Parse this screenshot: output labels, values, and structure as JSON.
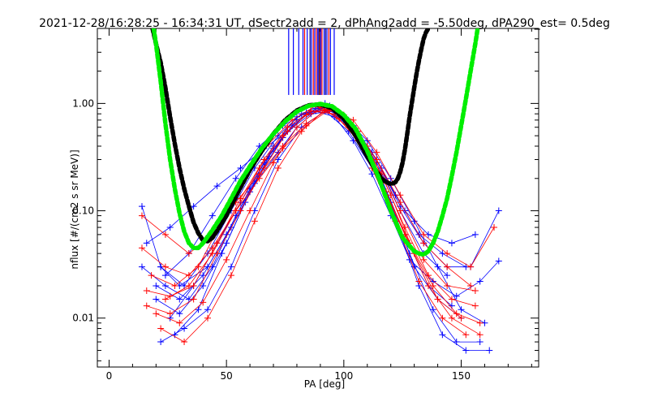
{
  "chart_data": {
    "type": "line",
    "title": "2021-12-28/16:28:25 - 16:34:31 UT, dSectr2add = 2, dPhAng2add = -5.50deg, dPA290_est=   0.5deg",
    "xlabel": "PA [deg]",
    "ylabel": "nflux [#/(cm2 s sr MeV)]",
    "xlim": [
      -5,
      183
    ],
    "ylim": [
      0.0035,
      5.0
    ],
    "yscale": "log",
    "xticks": [
      0,
      50,
      100,
      150
    ],
    "xtick_labels": [
      "0",
      "50",
      "100",
      "150"
    ],
    "yticks": [
      0.01,
      0.1,
      1.0
    ],
    "ytick_labels": [
      "0.01",
      "0.10",
      "1.00"
    ],
    "grid": false,
    "colors": {
      "blue": "#0000ff",
      "red": "#ff0000",
      "black": "#000000",
      "green": "#00ee00",
      "navy": "#00008b",
      "darkred": "#8b0000"
    },
    "vertical_markers": {
      "ymin": 1.2,
      "ymax": 5.0,
      "blue_x": [
        76.5,
        78.5,
        80.8,
        82.6,
        84.4,
        86.2,
        87.6,
        88.9,
        90.2,
        91.6,
        92.8,
        94.3,
        95.9
      ],
      "navy_x": [
        85.6,
        89.4,
        92.2
      ],
      "red_x": [
        83.3,
        87.0,
        88.3,
        90.7,
        93.6
      ],
      "darkred_x": [
        89.7
      ]
    },
    "fit_curves": [
      {
        "color": "black",
        "x": [
          18.5,
          20,
          22,
          24,
          26,
          28,
          30,
          32,
          34,
          36,
          38,
          40,
          42,
          44,
          46,
          50,
          55,
          60,
          65,
          70,
          75,
          80,
          85,
          90,
          95,
          100,
          105,
          110,
          113,
          116,
          118,
          120,
          121,
          122,
          123,
          124,
          125,
          126,
          127,
          128,
          130,
          131,
          132,
          133,
          134,
          135,
          136
        ],
        "y": [
          5.0,
          3.6,
          2.4,
          1.4,
          0.75,
          0.42,
          0.25,
          0.16,
          0.11,
          0.078,
          0.062,
          0.053,
          0.052,
          0.056,
          0.065,
          0.09,
          0.15,
          0.24,
          0.36,
          0.52,
          0.7,
          0.86,
          0.96,
          0.98,
          0.9,
          0.72,
          0.5,
          0.32,
          0.25,
          0.2,
          0.185,
          0.178,
          0.18,
          0.185,
          0.2,
          0.23,
          0.28,
          0.37,
          0.52,
          0.75,
          1.4,
          1.9,
          2.5,
          3.2,
          4.0,
          4.6,
          5.0
        ]
      },
      {
        "color": "green",
        "x": [
          19,
          20,
          22,
          24,
          26,
          28,
          30,
          32,
          34,
          36,
          38,
          40,
          44,
          48,
          52,
          56,
          60,
          65,
          70,
          75,
          80,
          85,
          90,
          95,
          100,
          105,
          110,
          115,
          120,
          125,
          130,
          132,
          134,
          136,
          138,
          140,
          142,
          144,
          146,
          148,
          150,
          152,
          154,
          156,
          157
        ],
        "y": [
          5.0,
          3.6,
          1.6,
          0.65,
          0.3,
          0.16,
          0.095,
          0.064,
          0.05,
          0.045,
          0.045,
          0.05,
          0.066,
          0.09,
          0.13,
          0.19,
          0.26,
          0.38,
          0.52,
          0.68,
          0.84,
          0.95,
          0.99,
          0.94,
          0.78,
          0.58,
          0.36,
          0.2,
          0.1,
          0.056,
          0.042,
          0.04,
          0.039,
          0.042,
          0.05,
          0.064,
          0.09,
          0.13,
          0.21,
          0.35,
          0.62,
          1.1,
          2.0,
          3.6,
          5.0
        ]
      }
    ],
    "series": [
      {
        "color": "blue",
        "x": [
          14,
          22,
          30,
          42,
          52,
          62,
          72,
          80,
          88,
          96,
          104,
          112,
          120,
          128,
          138,
          148,
          158,
          166
        ],
        "y": [
          0.11,
          0.03,
          0.02,
          0.03,
          0.07,
          0.18,
          0.35,
          0.6,
          0.85,
          0.75,
          0.45,
          0.22,
          0.09,
          0.035,
          0.022,
          0.016,
          0.022,
          0.034
        ]
      },
      {
        "color": "blue",
        "x": [
          20,
          30,
          40,
          50,
          60,
          70,
          80,
          90,
          100,
          110,
          120,
          130,
          140,
          150
        ],
        "y": [
          0.015,
          0.011,
          0.02,
          0.05,
          0.15,
          0.38,
          0.7,
          0.9,
          0.7,
          0.4,
          0.12,
          0.03,
          0.015,
          0.01
        ]
      },
      {
        "color": "blue",
        "x": [
          24,
          34,
          44,
          54,
          64,
          74,
          84,
          94,
          104,
          114,
          124,
          134,
          144,
          154,
          166
        ],
        "y": [
          0.025,
          0.04,
          0.09,
          0.2,
          0.4,
          0.62,
          0.82,
          0.9,
          0.62,
          0.3,
          0.11,
          0.05,
          0.03,
          0.03,
          0.1
        ]
      },
      {
        "color": "blue",
        "x": [
          22,
          32,
          42,
          52,
          62,
          72,
          82,
          92,
          102,
          112,
          122,
          132,
          142,
          152,
          162
        ],
        "y": [
          0.006,
          0.008,
          0.012,
          0.03,
          0.1,
          0.3,
          0.6,
          0.85,
          0.55,
          0.25,
          0.08,
          0.02,
          0.007,
          0.005,
          0.005
        ]
      },
      {
        "color": "blue",
        "x": [
          16,
          26,
          36,
          46,
          56,
          66,
          76,
          86,
          96,
          106,
          116,
          126,
          136,
          146,
          156
        ],
        "y": [
          0.05,
          0.07,
          0.11,
          0.17,
          0.25,
          0.38,
          0.55,
          0.8,
          0.85,
          0.55,
          0.25,
          0.1,
          0.06,
          0.05,
          0.06
        ]
      },
      {
        "color": "blue",
        "x": [
          22,
          32,
          42,
          52,
          62,
          72,
          82,
          92,
          102,
          112,
          122,
          132,
          142,
          152
        ],
        "y": [
          0.03,
          0.02,
          0.04,
          0.1,
          0.25,
          0.5,
          0.8,
          1.0,
          0.7,
          0.35,
          0.14,
          0.06,
          0.04,
          0.03
        ]
      },
      {
        "color": "blue",
        "x": [
          26,
          36,
          46,
          56,
          66,
          76,
          86,
          96,
          106,
          116,
          126,
          136,
          146
        ],
        "y": [
          0.01,
          0.02,
          0.05,
          0.12,
          0.28,
          0.55,
          0.85,
          0.8,
          0.5,
          0.2,
          0.06,
          0.02,
          0.013
        ]
      },
      {
        "color": "blue",
        "x": [
          20,
          30,
          40,
          50,
          60,
          70,
          80,
          90,
          100,
          110,
          120,
          130,
          140,
          150,
          160
        ],
        "y": [
          0.02,
          0.015,
          0.025,
          0.06,
          0.16,
          0.4,
          0.75,
          0.92,
          0.75,
          0.45,
          0.2,
          0.08,
          0.03,
          0.012,
          0.009
        ]
      },
      {
        "color": "blue",
        "x": [
          14,
          24,
          34,
          44,
          54,
          64,
          74,
          84,
          94,
          104,
          114,
          124,
          134,
          144
        ],
        "y": [
          0.03,
          0.02,
          0.015,
          0.03,
          0.09,
          0.22,
          0.48,
          0.8,
          0.95,
          0.62,
          0.28,
          0.1,
          0.04,
          0.025
        ]
      },
      {
        "color": "blue",
        "x": [
          28,
          38,
          48,
          58,
          68,
          78,
          88,
          98,
          108,
          118,
          128,
          138,
          148,
          158
        ],
        "y": [
          0.007,
          0.012,
          0.04,
          0.12,
          0.32,
          0.62,
          0.9,
          0.82,
          0.45,
          0.15,
          0.04,
          0.012,
          0.006,
          0.006
        ]
      },
      {
        "color": "red",
        "x": [
          14,
          24,
          34,
          44,
          54,
          64,
          74,
          84,
          94,
          104,
          114,
          124,
          134,
          144,
          154
        ],
        "y": [
          0.09,
          0.06,
          0.04,
          0.06,
          0.12,
          0.22,
          0.4,
          0.65,
          0.9,
          0.6,
          0.3,
          0.12,
          0.05,
          0.03,
          0.02
        ]
      },
      {
        "color": "red",
        "x": [
          16,
          26,
          36,
          46,
          56,
          66,
          76,
          86,
          96,
          106,
          116,
          126,
          136,
          146,
          158
        ],
        "y": [
          0.013,
          0.011,
          0.015,
          0.04,
          0.1,
          0.25,
          0.55,
          0.85,
          0.8,
          0.45,
          0.18,
          0.06,
          0.02,
          0.01,
          0.007
        ]
      },
      {
        "color": "red",
        "x": [
          18,
          28,
          38,
          48,
          58,
          68,
          78,
          88,
          98,
          108,
          118,
          128,
          138,
          148,
          158
        ],
        "y": [
          0.025,
          0.02,
          0.03,
          0.08,
          0.2,
          0.42,
          0.7,
          0.95,
          0.72,
          0.4,
          0.15,
          0.05,
          0.02,
          0.011,
          0.009
        ]
      },
      {
        "color": "red",
        "x": [
          14,
          24,
          34,
          44,
          54,
          64,
          74,
          84,
          94,
          104,
          114,
          124,
          134,
          144,
          154,
          164
        ],
        "y": [
          0.045,
          0.03,
          0.025,
          0.045,
          0.1,
          0.2,
          0.38,
          0.62,
          0.88,
          0.7,
          0.35,
          0.14,
          0.06,
          0.04,
          0.03,
          0.07
        ]
      },
      {
        "color": "red",
        "x": [
          22,
          32,
          42,
          52,
          62,
          72,
          82,
          92,
          102,
          112,
          122,
          132,
          142,
          152
        ],
        "y": [
          0.008,
          0.006,
          0.01,
          0.025,
          0.08,
          0.25,
          0.55,
          0.88,
          0.6,
          0.25,
          0.08,
          0.022,
          0.01,
          0.007
        ]
      },
      {
        "color": "red",
        "x": [
          16,
          26,
          36,
          46,
          56,
          66,
          76,
          86,
          96,
          106,
          116,
          126,
          136,
          146,
          156
        ],
        "y": [
          0.018,
          0.016,
          0.02,
          0.05,
          0.13,
          0.3,
          0.6,
          0.85,
          0.85,
          0.55,
          0.22,
          0.07,
          0.025,
          0.015,
          0.013
        ]
      },
      {
        "color": "red",
        "x": [
          20,
          30,
          40,
          50,
          60,
          70,
          80,
          90,
          100,
          110,
          120,
          130,
          140,
          150
        ],
        "y": [
          0.011,
          0.009,
          0.014,
          0.035,
          0.1,
          0.28,
          0.6,
          0.92,
          0.78,
          0.4,
          0.14,
          0.04,
          0.015,
          0.01
        ]
      },
      {
        "color": "red",
        "x": [
          24,
          34,
          44,
          54,
          64,
          74,
          84,
          94,
          104,
          114,
          124,
          134,
          144,
          156
        ],
        "y": [
          0.015,
          0.02,
          0.04,
          0.1,
          0.25,
          0.5,
          0.78,
          0.9,
          0.6,
          0.3,
          0.1,
          0.035,
          0.02,
          0.018
        ]
      }
    ]
  }
}
